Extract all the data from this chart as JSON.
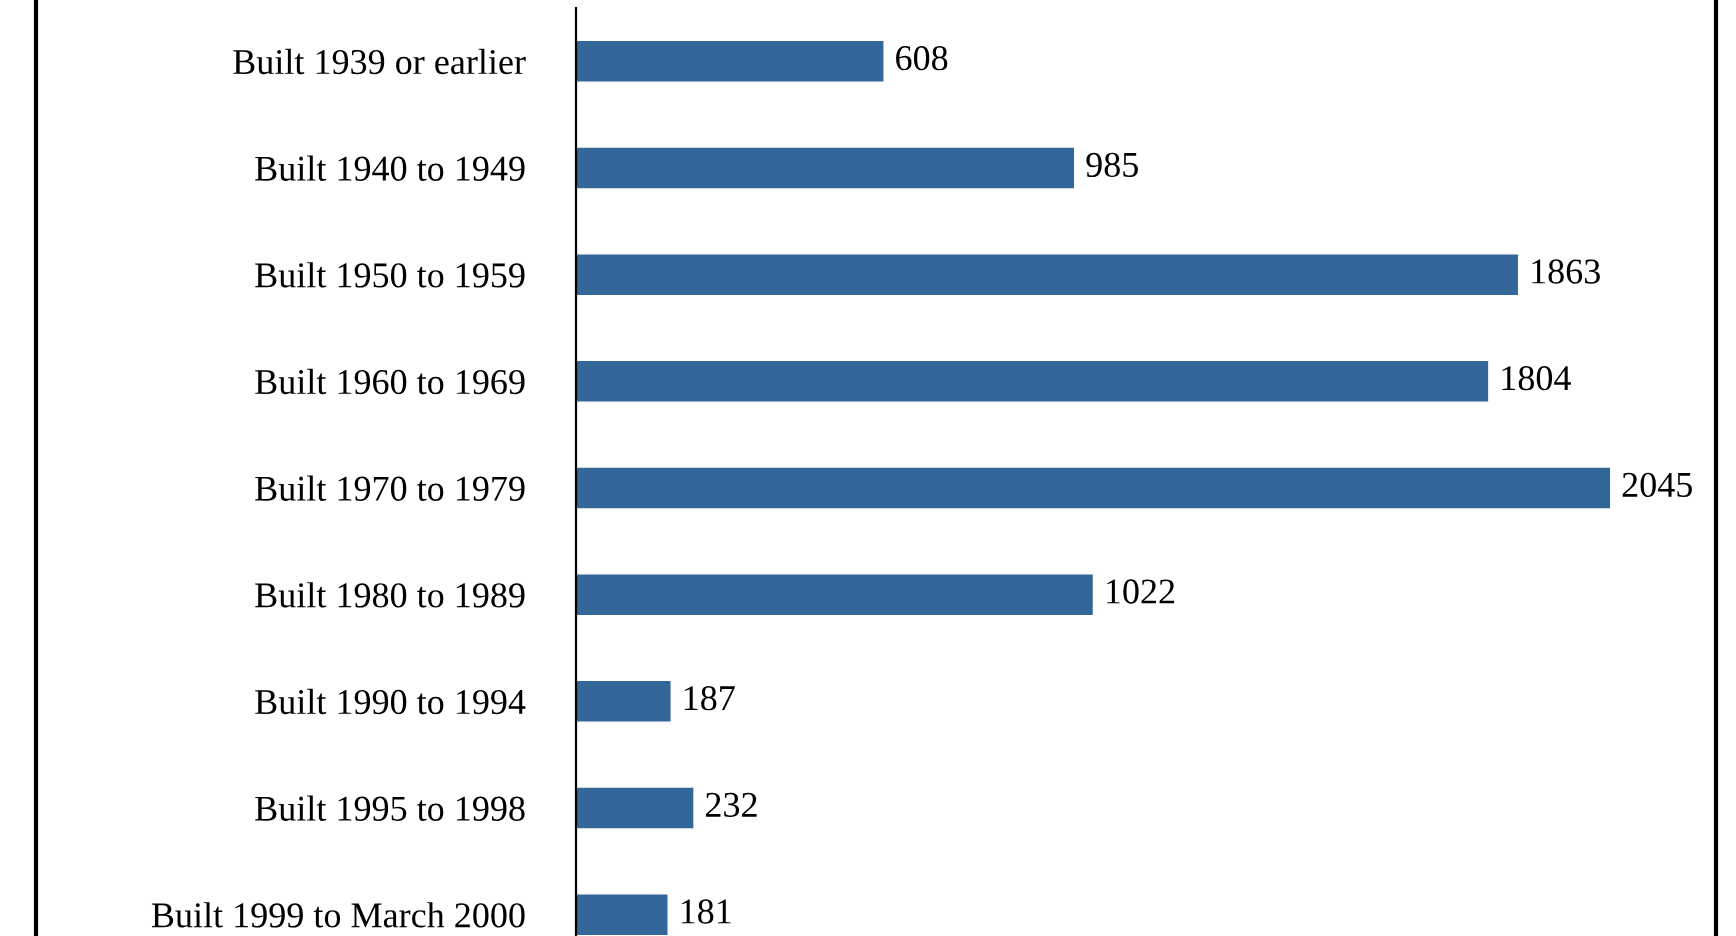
{
  "chart_data": {
    "type": "bar",
    "orientation": "horizontal",
    "categories": [
      "Built 1939 or earlier",
      "Built 1940 to 1949",
      "Built 1950 to 1959",
      "Built 1960 to 1969",
      "Built 1970 to 1979",
      "Built 1980 to 1989",
      "Built 1990 to 1994",
      "Built 1995 to 1998",
      "Built 1999 to March 2000"
    ],
    "values": [
      608,
      985,
      1863,
      1804,
      2045,
      1022,
      187,
      232,
      181
    ],
    "color": "#336699",
    "data_labels": true,
    "grid": false,
    "legend": false
  }
}
